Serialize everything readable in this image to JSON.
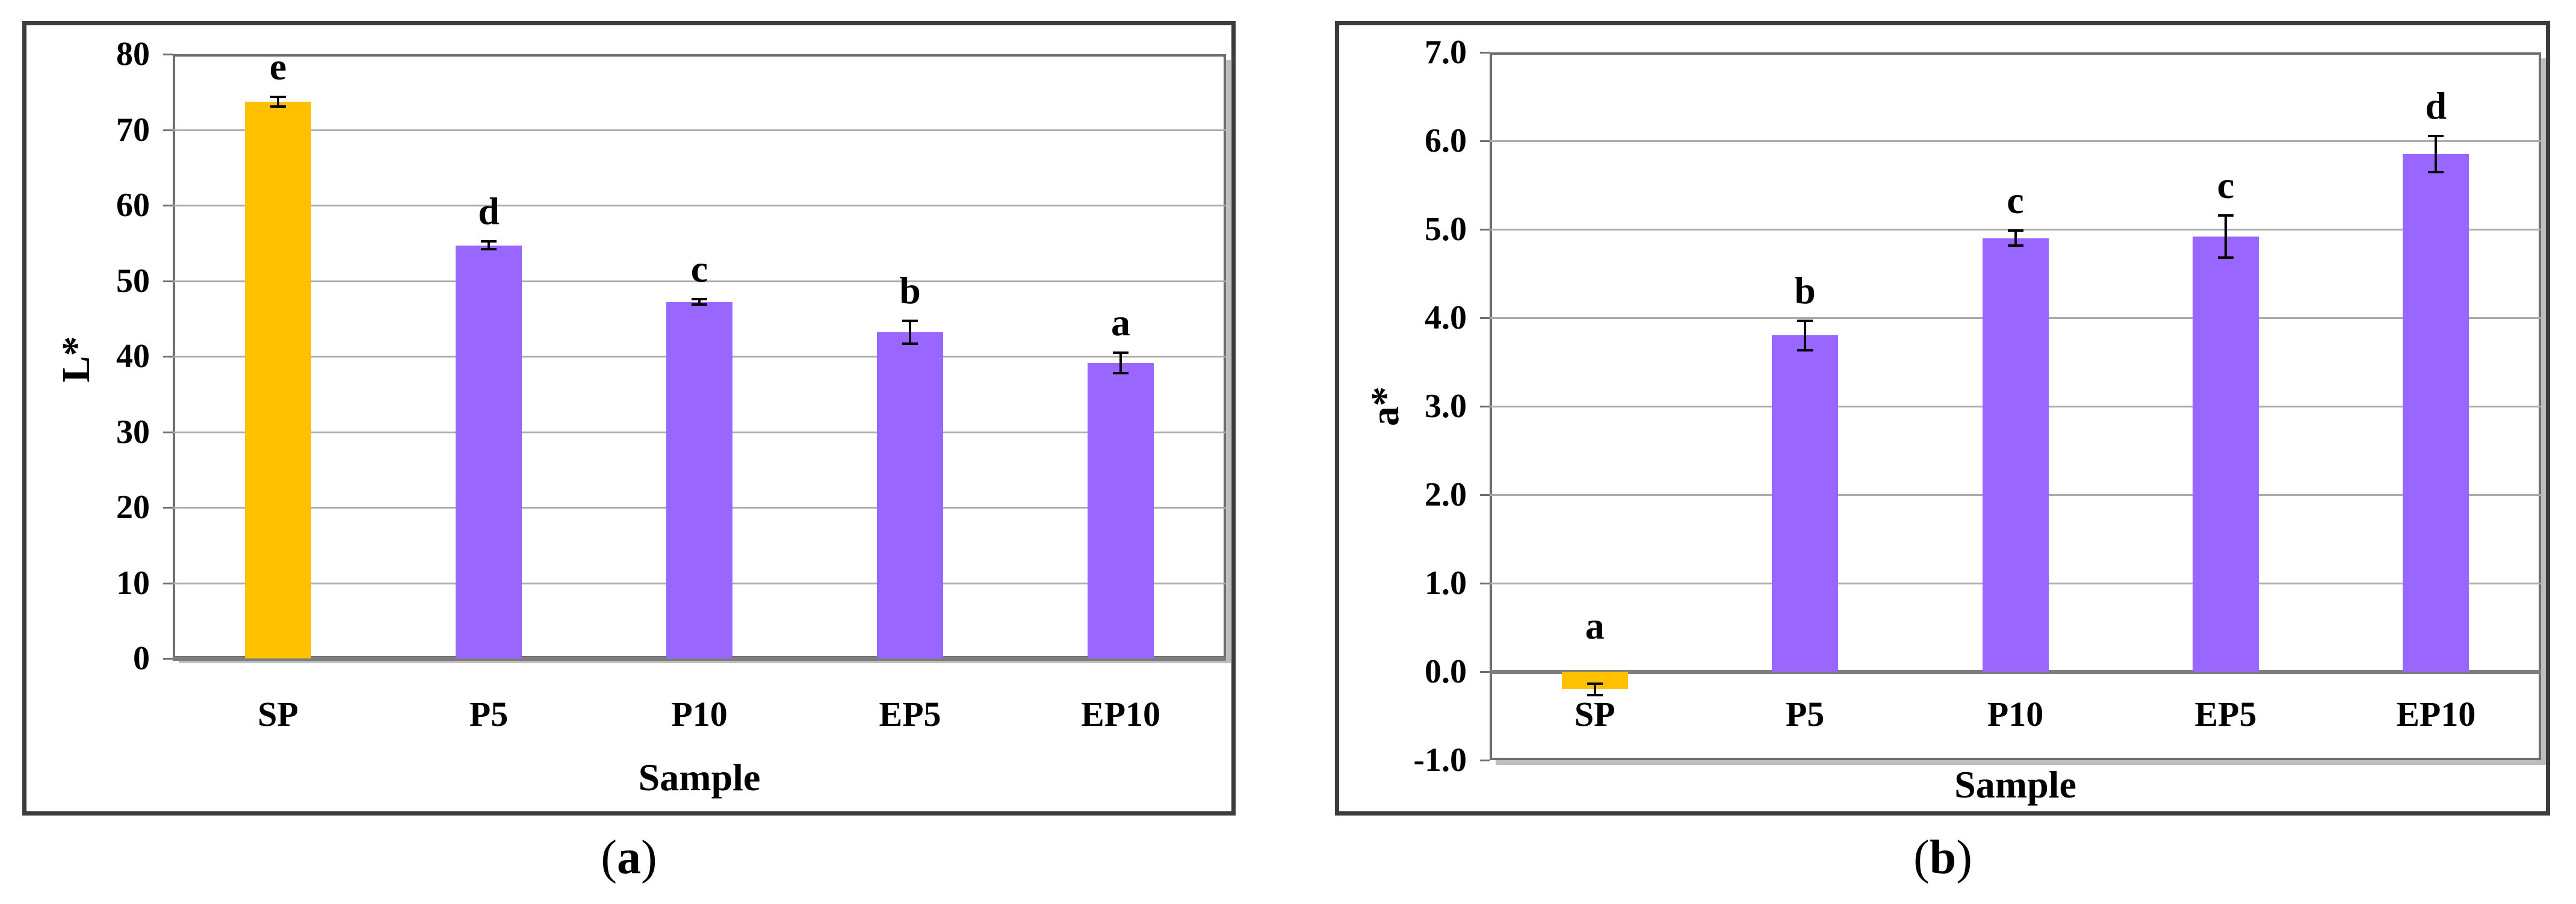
{
  "figure": {
    "background": "#FFFFFF",
    "colors": {
      "orange_bar": "#FFC000",
      "purple_bar": "#9966FF",
      "gridline": "#ABABAB",
      "plot_border": "#6E6E6E",
      "zero_axis": "#7D7D7D",
      "panel_frame": "#3C3C3C",
      "plot_shadow": "#BDBDBD",
      "error_bar": "#000000",
      "text": "#000000"
    }
  },
  "chart_data": [
    {
      "type": "bar",
      "caption": "a",
      "title": "",
      "ylabel": "L*",
      "xlabel": "Sample",
      "categories": [
        "SP",
        "P5",
        "P10",
        "EP5",
        "EP10"
      ],
      "values": [
        73.7,
        54.7,
        47.2,
        43.2,
        39.1
      ],
      "errors": [
        0.8,
        0.7,
        0.5,
        1.7,
        1.5
      ],
      "sig_letters": [
        "e",
        "d",
        "c",
        "b",
        "a"
      ],
      "bar_colors": [
        "#FFC000",
        "#9966FF",
        "#9966FF",
        "#9966FF",
        "#9966FF"
      ],
      "ylim": [
        0,
        80
      ],
      "ytick_step": 10,
      "ytick_decimals": 0,
      "ytick_labels": [
        "0",
        "10",
        "20",
        "30",
        "40",
        "50",
        "60",
        "70",
        "80"
      ],
      "grid": true,
      "legend": "none"
    },
    {
      "type": "bar",
      "caption": "b",
      "title": "",
      "ylabel": "a*",
      "xlabel": "Sample",
      "categories": [
        "SP",
        "P5",
        "P10",
        "EP5",
        "EP10"
      ],
      "values": [
        -0.2,
        3.8,
        4.9,
        4.92,
        5.85
      ],
      "errors": [
        0.08,
        0.18,
        0.1,
        0.25,
        0.22
      ],
      "sig_letters": [
        "a",
        "b",
        "c",
        "c",
        "d"
      ],
      "bar_colors": [
        "#FFC000",
        "#9966FF",
        "#9966FF",
        "#9966FF",
        "#9966FF"
      ],
      "ylim": [
        -1.0,
        7.0
      ],
      "ytick_step": 1.0,
      "ytick_decimals": 1,
      "ytick_labels": [
        "-1.0",
        "0.0",
        "1.0",
        "2.0",
        "3.0",
        "4.0",
        "5.0",
        "6.0",
        "7.0"
      ],
      "grid": true,
      "legend": "none"
    }
  ]
}
